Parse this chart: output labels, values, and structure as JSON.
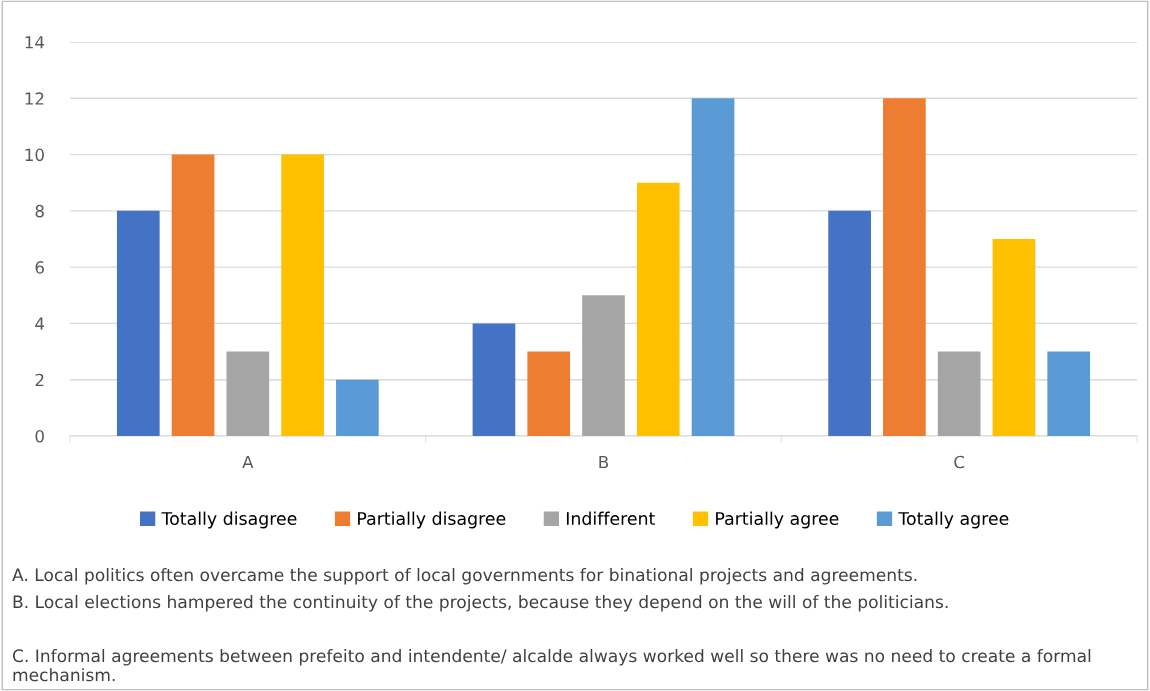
{
  "chart_data": {
    "type": "bar",
    "categories": [
      "A",
      "B",
      "C"
    ],
    "series": [
      {
        "name": "Totally disagree",
        "color": "#4472c4",
        "values": [
          8,
          4,
          8
        ]
      },
      {
        "name": "Partially disagree",
        "color": "#ed7d31",
        "values": [
          10,
          3,
          12
        ]
      },
      {
        "name": "Indifferent",
        "color": "#a5a5a5",
        "values": [
          3,
          5,
          3
        ]
      },
      {
        "name": "Partially agree",
        "color": "#ffc000",
        "values": [
          10,
          9,
          7
        ]
      },
      {
        "name": "Totally agree",
        "color": "#5b9bd5",
        "values": [
          2,
          12,
          3
        ]
      }
    ],
    "ylim": [
      0,
      14
    ],
    "yticks": [
      0,
      2,
      4,
      6,
      8,
      10,
      12,
      14
    ],
    "grid": "y",
    "legend": "bottom",
    "annotations": [
      "A. Local politics often overcame the support of local governments for binational projects and agreements.",
      "B. Local elections hampered the continuity of the projects, because they depend on the will of the politicians.",
      "C. Informal agreements between prefeito and intendente/ alcalde always worked well so there was no need to create a formal mechanism."
    ]
  }
}
